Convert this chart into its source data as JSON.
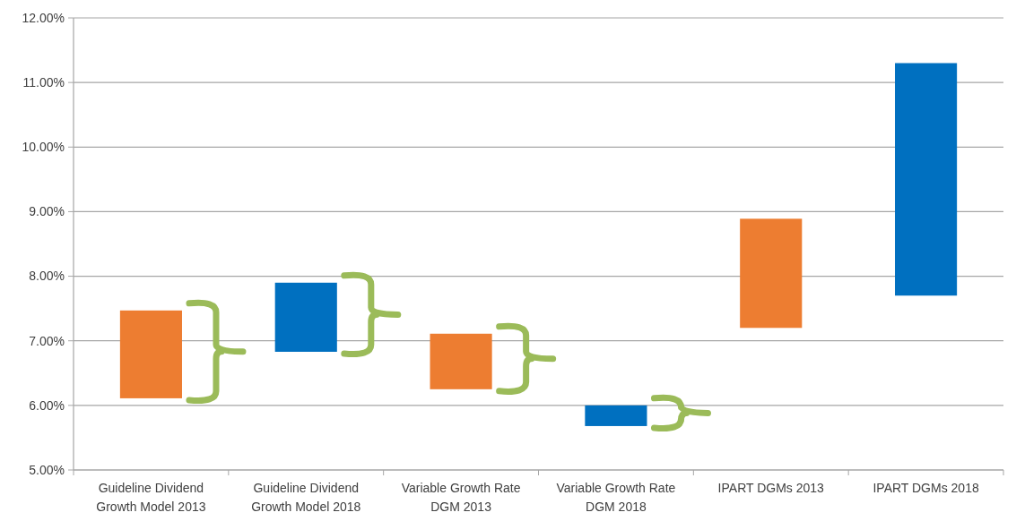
{
  "chart_data": {
    "type": "bar",
    "categories": [
      "Guideline Dividend Growth Model 2013",
      "Guideline Dividend Growth Model 2018",
      "Variable Growth Rate DGM 2013",
      "Variable Growth Rate DGM 2018",
      "IPART DGMs 2013",
      "IPART DGMs 2018"
    ],
    "base": [
      6.11,
      6.83,
      6.25,
      5.68,
      7.2,
      7.7
    ],
    "values": [
      1.36,
      1.07,
      0.86,
      0.32,
      1.69,
      3.6
    ],
    "colors": [
      "#ed7d31",
      "#0070c0",
      "#ed7d31",
      "#0070c0",
      "#ed7d31",
      "#0070c0"
    ],
    "ylim": [
      5,
      12
    ],
    "yticks": [
      {
        "value": 5,
        "label": "5.00%"
      },
      {
        "value": 6,
        "label": "6.00%"
      },
      {
        "value": 7,
        "label": "7.00%"
      },
      {
        "value": 8,
        "label": "8.00%"
      },
      {
        "value": 9,
        "label": "9.00%"
      },
      {
        "value": 10,
        "label": "10.00%"
      },
      {
        "value": 11,
        "label": "11.00%"
      },
      {
        "value": 12,
        "label": "12.00%"
      }
    ],
    "grid": "y"
  }
}
